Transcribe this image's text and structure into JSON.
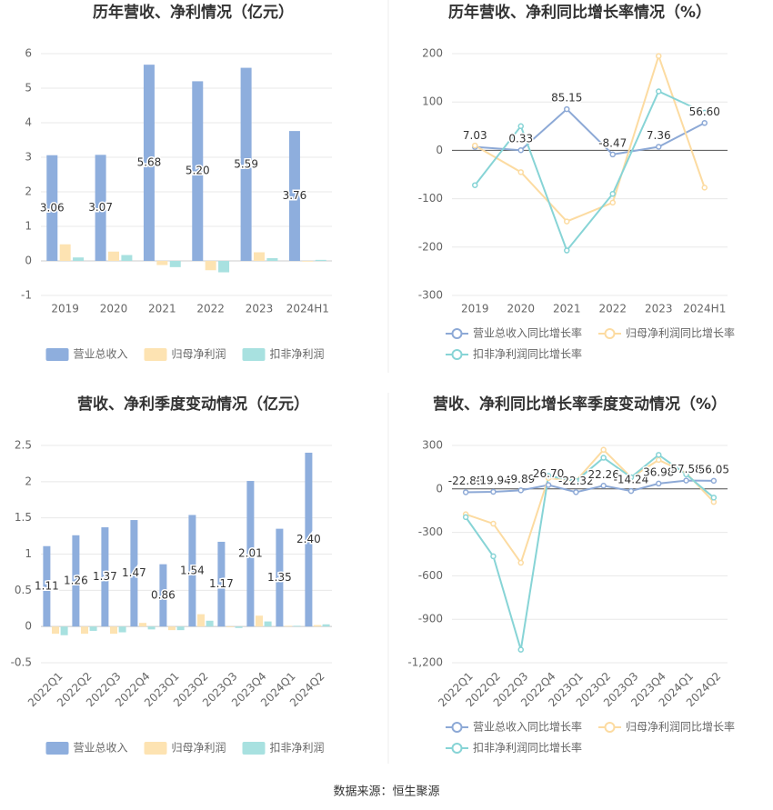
{
  "chart_data": [
    {
      "type": "bar",
      "title": "历年营收、净利情况（亿元）",
      "categories": [
        "2019",
        "2020",
        "2021",
        "2022",
        "2023",
        "2024H1"
      ],
      "series": [
        {
          "name": "营业总收入",
          "color": "#8eaedd",
          "values": [
            3.06,
            3.07,
            5.68,
            5.2,
            5.59,
            3.76
          ],
          "value_labels": [
            "3.06",
            "3.07",
            "5.68",
            "5.20",
            "5.59",
            "3.76"
          ]
        },
        {
          "name": "归母净利润",
          "color": "#fde3b2",
          "values": [
            0.48,
            0.27,
            -0.12,
            -0.27,
            0.25,
            -0.02
          ]
        },
        {
          "name": "扣非净利润",
          "color": "#a8e1e0",
          "values": [
            0.1,
            0.17,
            -0.18,
            -0.33,
            0.08,
            0.03
          ]
        }
      ],
      "ylim": [
        -1,
        6
      ],
      "yticks": [
        -1,
        0,
        1,
        2,
        3,
        4,
        5,
        6
      ],
      "grid": true,
      "legend": "bottom"
    },
    {
      "type": "line",
      "title": "历年营收、净利同比增长率情况（%）",
      "categories": [
        "2019",
        "2020",
        "2021",
        "2022",
        "2023",
        "2024H1"
      ],
      "series": [
        {
          "name": "营业总收入同比增长率",
          "color": "#8da9d6",
          "values": [
            7.03,
            0.33,
            85.15,
            -8.47,
            7.36,
            56.6
          ],
          "value_labels": [
            "7.03",
            "0.33",
            "85.15",
            "-8.47",
            "7.36",
            "56.60"
          ]
        },
        {
          "name": "归母净利润同比增长率",
          "color": "#fcdba1",
          "values": [
            10,
            -45,
            -147,
            -108,
            195,
            -77
          ]
        },
        {
          "name": "扣非净利润同比增长率",
          "color": "#87d4d6",
          "values": [
            -72,
            50,
            -207,
            -90,
            122,
            78
          ]
        }
      ],
      "ylim": [
        -300,
        200
      ],
      "yticks": [
        -300,
        -200,
        -100,
        0,
        100,
        200
      ],
      "grid": true,
      "legend": "bottom"
    },
    {
      "type": "bar",
      "title": "营收、净利季度变动情况（亿元）",
      "categories": [
        "2022Q1",
        "2022Q2",
        "2022Q3",
        "2022Q4",
        "2023Q1",
        "2023Q2",
        "2023Q3",
        "2023Q4",
        "2024Q1",
        "2024Q2"
      ],
      "series": [
        {
          "name": "营业总收入",
          "color": "#8eaedd",
          "values": [
            1.11,
            1.26,
            1.37,
            1.47,
            0.86,
            1.54,
            1.17,
            2.01,
            1.35,
            2.4
          ],
          "value_labels": [
            "1.11",
            "1.26",
            "1.37",
            "1.47",
            "0.86",
            "1.54",
            "1.17",
            "2.01",
            "1.35",
            "2.40"
          ]
        },
        {
          "name": "归母净利润",
          "color": "#fde3b2",
          "values": [
            -0.1,
            -0.1,
            -0.1,
            0.05,
            -0.05,
            0.17,
            -0.01,
            0.15,
            0.01,
            0.02
          ]
        },
        {
          "name": "扣非净利润",
          "color": "#a8e1e0",
          "values": [
            -0.12,
            -0.06,
            -0.08,
            -0.04,
            -0.05,
            0.08,
            -0.02,
            0.07,
            0.01,
            0.03
          ]
        }
      ],
      "ylim": [
        -0.5,
        2.5
      ],
      "yticks": [
        -0.5,
        0,
        0.5,
        1,
        1.5,
        2,
        2.5
      ],
      "grid": true,
      "legend": "bottom"
    },
    {
      "type": "line",
      "title": "营收、净利同比增长率季度变动情况（%）",
      "categories": [
        "2022Q1",
        "2022Q2",
        "2022Q3",
        "2022Q4",
        "2023Q1",
        "2023Q2",
        "2023Q3",
        "2023Q4",
        "2024Q1",
        "2024Q2"
      ],
      "series": [
        {
          "name": "营业总收入同比增长率",
          "color": "#8da9d6",
          "values": [
            -22.85,
            -19.94,
            -9.89,
            26.7,
            -22.32,
            22.26,
            -14.24,
            36.98,
            57.58,
            56.05
          ],
          "value_labels": [
            "-22.85",
            "-19.94",
            "-9.89",
            "26.70",
            "-22.32",
            "22.26",
            "-14.24",
            "36.98",
            "57.58",
            "56.05"
          ]
        },
        {
          "name": "归母净利润同比增长率",
          "color": "#fcdba1",
          "values": [
            -175,
            -240,
            -510,
            75,
            55,
            270,
            80,
            200,
            110,
            -90
          ]
        },
        {
          "name": "扣非净利润同比增长率",
          "color": "#87d4d6",
          "values": [
            -195,
            -465,
            -1110,
            90,
            55,
            215,
            80,
            235,
            100,
            -60
          ]
        }
      ],
      "ylim": [
        -1200,
        300
      ],
      "yticks": [
        {
          "value": -1200,
          "label": "-1,200"
        },
        -900,
        -600,
        -300,
        0,
        300
      ],
      "grid": true,
      "legend": "bottom"
    }
  ],
  "source": "数据来源：恒生聚源"
}
